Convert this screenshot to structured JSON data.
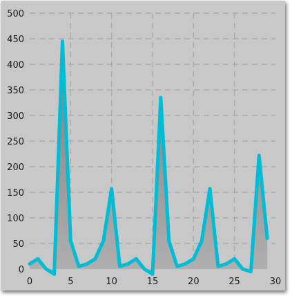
{
  "chart_data": {
    "type": "area",
    "x": [
      0,
      1,
      2,
      3,
      4,
      5,
      6,
      7,
      8,
      9,
      10,
      11,
      12,
      13,
      14,
      15,
      16,
      17,
      18,
      19,
      20,
      21,
      22,
      23,
      24,
      25,
      26,
      27,
      28,
      29
    ],
    "series": [
      {
        "values": [
          10,
          20,
          0,
          -10,
          445,
          55,
          5,
          10,
          20,
          55,
          157,
          5,
          10,
          20,
          0,
          -10,
          335,
          55,
          5,
          10,
          20,
          55,
          157,
          5,
          10,
          20,
          0,
          -5,
          222,
          60
        ]
      }
    ],
    "xlim": [
      0,
      30
    ],
    "ylim": [
      0,
      500
    ],
    "x_ticks": [
      "0",
      "5",
      "10",
      "15",
      "20",
      "25",
      "30"
    ],
    "y_ticks": [
      "0",
      "50",
      "100",
      "150",
      "200",
      "250",
      "300",
      "350",
      "400",
      "450",
      "500"
    ],
    "grid": true,
    "colors": {
      "background": "#c8c8c8",
      "line": "#00bcd4",
      "fill_top": "#7a7a7a",
      "fill_bottom": "#b0b0b0",
      "grid": "#a8a8a8"
    }
  }
}
